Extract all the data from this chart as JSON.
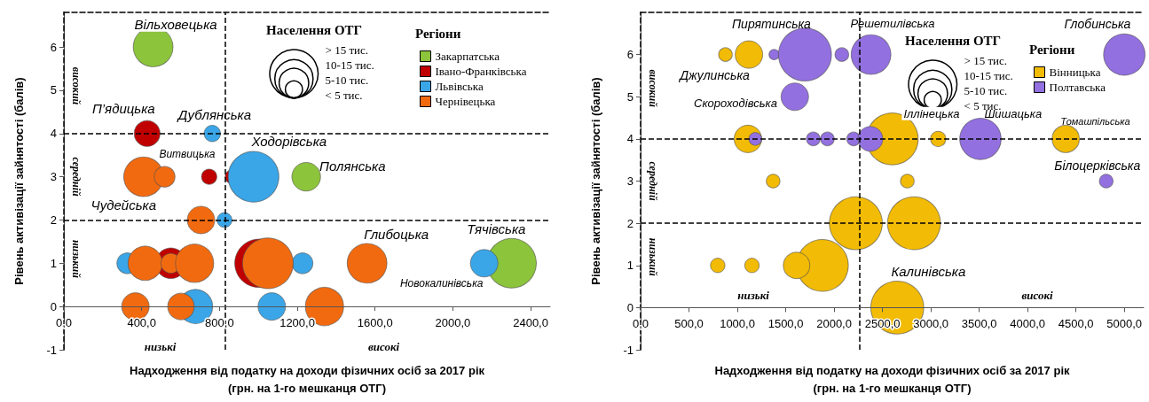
{
  "chart_data": [
    {
      "type": "bubble",
      "xlabel": "Надходження від податку на доходи фізичних осіб за 2017 рік\n(грн. на 1-го мешканця ОТГ)",
      "ylabel": "Рівень активізації зайнятості (балів)",
      "legend_title": "Регіони",
      "legend": "top right",
      "marker": "circle",
      "grid": false,
      "xlim": [
        0,
        2500
      ],
      "xticks": [
        {
          "value": 0,
          "label": "0,0"
        },
        {
          "value": 400,
          "label": "400,0"
        },
        {
          "value": 800,
          "label": "800,0"
        },
        {
          "value": 1200,
          "label": "1200,0"
        },
        {
          "value": 1600,
          "label": "1600,0"
        },
        {
          "value": 2000,
          "label": "2000,0"
        },
        {
          "value": 2400,
          "label": "2400,0"
        }
      ],
      "ylim": [
        -1,
        6.8
      ],
      "yticks": [
        -1,
        0,
        1,
        2,
        3,
        4,
        5,
        6
      ],
      "size_legend": [
        {
          "value": 20,
          "label": "> 15 тис."
        },
        {
          "value": 12.5,
          "label": "10-15 тис."
        },
        {
          "value": 7.5,
          "label": "5-10 тис."
        },
        {
          "value": 2.5,
          "label": "< 5 тис."
        }
      ],
      "ref_lines": [
        {
          "axis": "x",
          "value": 830,
          "line_style": "dashed",
          "color": "#000000"
        },
        {
          "axis": "y",
          "value": 4,
          "line_style": "dashed",
          "color": "#000000"
        },
        {
          "axis": "y",
          "value": 2,
          "line_style": "dashed",
          "color": "#000000"
        }
      ],
      "series": [
        {
          "name": "Закарпатська",
          "color": "#8cc43c",
          "x": [
            459,
            1246,
            2302
          ],
          "values": [
            6,
            3,
            1
          ],
          "sizes": [
            13.5,
            7,
            21
          ]
        },
        {
          "name": "Івано-Франківська",
          "color": "#c00000",
          "x": [
            428,
            747,
            864,
            550,
            1003
          ],
          "values": [
            4,
            3,
            3,
            1,
            1
          ],
          "sizes": [
            5.7,
            2,
            1.6,
            8,
            20
          ]
        },
        {
          "name": "Львівська",
          "color": "#3aa6e8",
          "x": [
            763,
            975,
            826,
            326,
            1227,
            2161,
            677,
            1069
          ],
          "values": [
            4,
            3,
            2,
            1,
            1,
            1,
            0,
            0
          ],
          "sizes": [
            2.3,
            22,
            1.9,
            3.7,
            3.7,
            6.5,
            10,
            6.5
          ]
        },
        {
          "name": "Чернівецька",
          "color": "#f26a10",
          "x": [
            410,
            518,
            705,
            418,
            550,
            672,
            1049,
            1559,
            368,
            602,
            1340
          ],
          "values": [
            3,
            3,
            2,
            1,
            1,
            1,
            1,
            1,
            0,
            0,
            0
          ],
          "sizes": [
            13.5,
            3.7,
            6.5,
            10,
            3.4,
            12.5,
            22,
            13.5,
            6.5,
            6,
            12.5
          ]
        }
      ],
      "annotations": [
        "Населення ОТГ",
        "Вільховецька",
        "П’ядицька",
        "Дублянська",
        "Витвицька",
        "Ходорівська",
        "Полянська",
        "Чудейська",
        "Глибоцька",
        "Тячівська",
        "Новокалинівська",
        "високий",
        "середній",
        "низький",
        "низькі",
        "високі"
      ]
    },
    {
      "type": "bubble",
      "xlabel": "Надходження від податку на доходи фізичних осіб за 2017 рік\n(грн. на 1-го мешканця ОТГ)",
      "ylabel": "Рівень активізації зайнятості (балів)",
      "legend_title": "Регіони",
      "legend": "top right",
      "marker": "circle",
      "grid": false,
      "xlim": [
        0,
        5200
      ],
      "xticks": [
        {
          "value": 0,
          "label": "0,0"
        },
        {
          "value": 500,
          "label": "500,0"
        },
        {
          "value": 1000,
          "label": "1000,0"
        },
        {
          "value": 1500,
          "label": "1500,0"
        },
        {
          "value": 2000,
          "label": "2000,0"
        },
        {
          "value": 2500,
          "label": "2500,0"
        },
        {
          "value": 3000,
          "label": "3000,0"
        },
        {
          "value": 3500,
          "label": "3500,0"
        },
        {
          "value": 4000,
          "label": "4000,0"
        },
        {
          "value": 4500,
          "label": "4500,0"
        },
        {
          "value": 5000,
          "label": "5000,0"
        }
      ],
      "ylim": [
        -1,
        7
      ],
      "yticks": [
        -1,
        0,
        1,
        2,
        3,
        4,
        5,
        6
      ],
      "size_legend": [
        {
          "value": 20,
          "label": "> 15 тис."
        },
        {
          "value": 12.5,
          "label": "10-15 тис."
        },
        {
          "value": 7.5,
          "label": "5-10 тис."
        },
        {
          "value": 2.5,
          "label": "< 5 тис."
        }
      ],
      "ref_lines": [
        {
          "axis": "x",
          "value": 2260,
          "line_style": "dashed",
          "color": "#000000"
        },
        {
          "axis": "y",
          "value": 4,
          "line_style": "dashed",
          "color": "#000000"
        },
        {
          "axis": "y",
          "value": 2,
          "line_style": "dashed",
          "color": "#000000"
        }
      ],
      "series": [
        {
          "name": "Вінницька",
          "color": "#f2bb05",
          "x": [
            877,
            1120,
            1109,
            3076,
            2601,
            4394,
            1370,
            2757,
            2225,
            2826,
            797,
            1151,
            1879,
            1612,
            2653
          ],
          "values": [
            6,
            6,
            4,
            4,
            4,
            4,
            3,
            3,
            2,
            2,
            1,
            1,
            1,
            1,
            0
          ],
          "sizes": [
            1.6,
            6.5,
            6.5,
            2,
            23,
            6.4,
            1.6,
            1.6,
            24,
            24,
            1.8,
            1.8,
            23,
            6,
            24
          ]
        },
        {
          "name": "Полтавська",
          "color": "#9370e0",
          "x": [
            1380,
            1699,
            2080,
            2382,
            5000,
            1594,
            1186,
            1785,
            1931,
            2202,
            2375,
            3513,
            4813
          ],
          "values": [
            6,
            6,
            6,
            6,
            6,
            5,
            4,
            4,
            4,
            4,
            4,
            4,
            3
          ],
          "sizes": [
            0.9,
            24,
            1.6,
            13.5,
            14.7,
            6.5,
            1.4,
            1.6,
            1.6,
            1.6,
            5.3,
            14.7,
            1.6
          ]
        }
      ],
      "annotations": [
        "Населення ОТГ",
        "Пирятинська",
        "Решетилівська",
        "Глобинська",
        "Джулинська",
        "Скороходівська",
        "Іллінецька",
        "Шишацька",
        "Томашпільська",
        "Білоцерківська",
        "Калинівська",
        "високий",
        "середній",
        "низький",
        "низькі",
        "високі"
      ]
    }
  ]
}
